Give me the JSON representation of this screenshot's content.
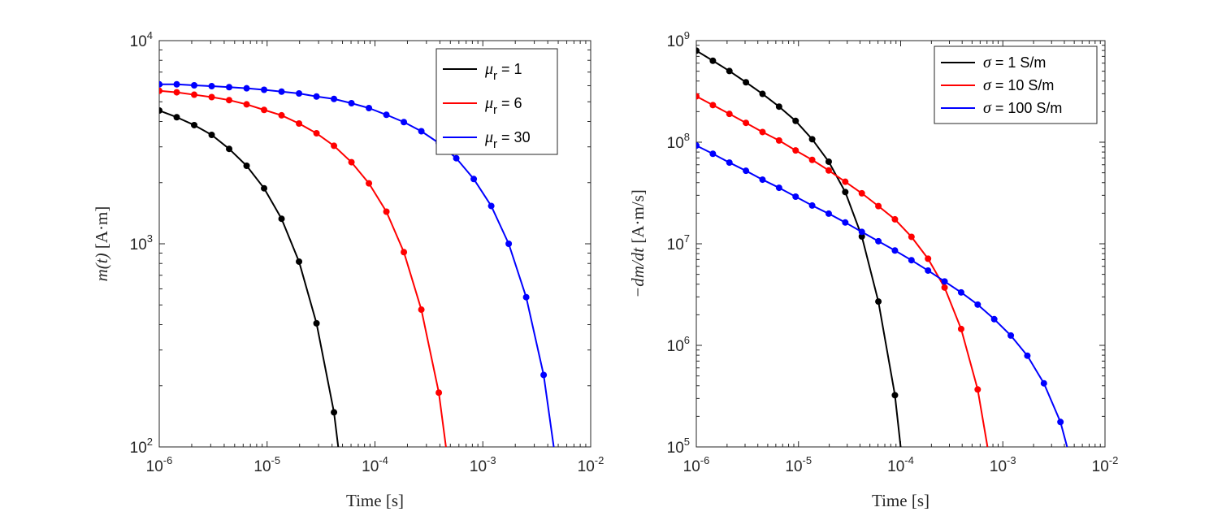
{
  "chart_data": [
    {
      "type": "line",
      "title": "",
      "xlabel": "Time [s]",
      "ylabel_italic": "m(t)",
      "ylabel_unit": "[A·m]",
      "xscale": "log",
      "yscale": "log",
      "xlim": [
        1e-06,
        0.01
      ],
      "ylim": [
        100,
        10000
      ],
      "xticks": [
        {
          "base": "10",
          "exp": "-6"
        },
        {
          "base": "10",
          "exp": "-5"
        },
        {
          "base": "10",
          "exp": "-4"
        },
        {
          "base": "10",
          "exp": "-3"
        },
        {
          "base": "10",
          "exp": "-2"
        }
      ],
      "yticks": [
        {
          "base": "10",
          "exp": "2"
        },
        {
          "base": "10",
          "exp": "3"
        },
        {
          "base": "10",
          "exp": "4"
        }
      ],
      "x_point_log_step": 0.162,
      "legend_position": "top-right",
      "series": [
        {
          "name": "μr = 1",
          "sym": "μ",
          "sub": "r",
          "rest": " = 1",
          "color": "#000000",
          "values": [
            4529,
            4198,
            3839,
            3436,
            2932,
            2421,
            1876,
            1328,
            817,
            406,
            148
          ]
        },
        {
          "name": "μr = 6",
          "sym": "μ",
          "sub": "r",
          "rest": " = 6",
          "color": "#ff0000",
          "values": [
            5662,
            5567,
            5417,
            5272,
            5096,
            4856,
            4560,
            4288,
            3908,
            3499,
            3036,
            2521,
            1984,
            1439,
            910,
            474,
            185
          ]
        },
        {
          "name": "μr = 30",
          "sym": "μ",
          "sub": "r",
          "rest": " = 30",
          "color": "#0000ff",
          "values": [
            6095,
            6095,
            6026,
            5967,
            5902,
            5826,
            5728,
            5610,
            5495,
            5309,
            5164,
            4920,
            4656,
            4315,
            3972,
            3581,
            3133,
            2637,
            2084,
            1535,
            1000,
            546,
            226
          ]
        }
      ]
    },
    {
      "type": "line",
      "title": "",
      "xlabel": "Time [s]",
      "ylabel_italic": "−dm/dt",
      "ylabel_unit": "[A·m/s]",
      "xscale": "log",
      "yscale": "log",
      "xlim": [
        1e-06,
        0.01
      ],
      "ylim": [
        100000.0,
        1000000000.0
      ],
      "xticks": [
        {
          "base": "10",
          "exp": "-6"
        },
        {
          "base": "10",
          "exp": "-5"
        },
        {
          "base": "10",
          "exp": "-4"
        },
        {
          "base": "10",
          "exp": "-3"
        },
        {
          "base": "10",
          "exp": "-2"
        }
      ],
      "yticks": [
        {
          "base": "10",
          "exp": "5"
        },
        {
          "base": "10",
          "exp": "6"
        },
        {
          "base": "10",
          "exp": "7"
        },
        {
          "base": "10",
          "exp": "8"
        },
        {
          "base": "10",
          "exp": "9"
        }
      ],
      "x_point_log_step": 0.162,
      "legend_position": "top-right",
      "series": [
        {
          "name": "σ = 1 S/m",
          "sym": "σ",
          "sub": "",
          "rest": " = 1 S/m",
          "color": "#000000",
          "values": [
            796000000.0,
            634000000.0,
            502000000.0,
            389000000.0,
            299000000.0,
            224000000.0,
            162000000.0,
            107000000.0,
            64300000.0,
            32300000.0,
            11800000.0,
            2700000.0,
            323000.0
          ]
        },
        {
          "name": "σ = 10 S/m",
          "sym": "σ",
          "sub": "",
          "rest": " = 10 S/m",
          "color": "#ff0000",
          "values": [
            283000000.0,
            232000000.0,
            190000000.0,
            155000000.0,
            126000000.0,
            104000000.0,
            83000000.0,
            67000000.0,
            52700000.0,
            40800000.0,
            31400000.0,
            23500000.0,
            17400000.0,
            11700000.0,
            7130000.0,
            3710000.0,
            1450000.0,
            368000.0
          ]
        },
        {
          "name": "σ = 100 S/m",
          "sym": "σ",
          "sub": "",
          "rest": " = 100 S/m",
          "color": "#0000ff",
          "values": [
            92700000.0,
            76900000.0,
            63000000.0,
            52300000.0,
            42800000.0,
            35600000.0,
            29100000.0,
            23800000.0,
            19800000.0,
            16200000.0,
            13100000.0,
            10600000.0,
            8590000.0,
            6890000.0,
            5450000.0,
            4260000.0,
            3320000.0,
            2520000.0,
            1810000.0,
            1250000.0,
            791000.0,
            423000.0,
            176000.0
          ]
        }
      ]
    }
  ]
}
